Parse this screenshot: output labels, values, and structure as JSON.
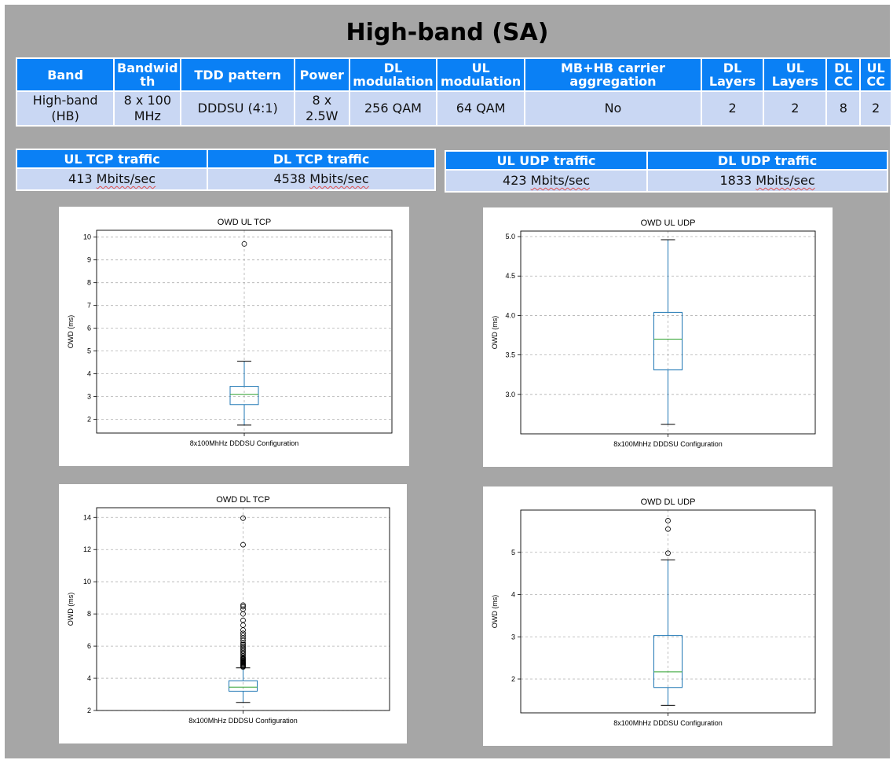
{
  "title": "High-band (SA)",
  "spec_table": {
    "headers": [
      "Band",
      "Bandwidth",
      "TDD pattern",
      "Power",
      "DL modulation",
      "UL modulation",
      "MB+HB carrier aggregation",
      "DL Layers",
      "UL Layers",
      "DL CC",
      "UL CC"
    ],
    "header_lines": [
      [
        "Band"
      ],
      [
        "Bandwid",
        "th"
      ],
      [
        "TDD pattern"
      ],
      [
        "Power"
      ],
      [
        "DL",
        "modulation"
      ],
      [
        "UL",
        "modulation"
      ],
      [
        "MB+HB carrier",
        "aggregation"
      ],
      [
        "DL",
        "Layers"
      ],
      [
        "UL",
        "Layers"
      ],
      [
        "DL",
        "CC"
      ],
      [
        "UL",
        "CC"
      ]
    ],
    "row_lines": [
      [
        "High-band",
        "(HB)"
      ],
      [
        "8 x 100",
        "MHz"
      ],
      [
        "DDDSU (4:1)"
      ],
      [
        "8 x",
        "2.5W"
      ],
      [
        "256 QAM"
      ],
      [
        "64 QAM"
      ],
      [
        "No"
      ],
      [
        "2"
      ],
      [
        "2"
      ],
      [
        "8"
      ],
      [
        "2"
      ]
    ]
  },
  "tcp_table": {
    "headers": [
      "UL TCP traffic",
      "DL TCP traffic"
    ],
    "values": [
      [
        "413",
        "Mbits/sec"
      ],
      [
        "4538",
        "Mbits/sec"
      ]
    ]
  },
  "udp_table": {
    "headers": [
      "UL UDP traffic",
      "DL UDP traffic"
    ],
    "values": [
      [
        "423",
        "Mbits/sec"
      ],
      [
        "1833",
        "Mbits/sec"
      ]
    ]
  },
  "chart_data": [
    {
      "type": "box",
      "title": "OWD UL TCP",
      "ylabel": "OWD (ms)",
      "categories": [
        "8x100MhHz DDDSU Configuration"
      ],
      "ylim": [
        1.4,
        10.3
      ],
      "yticks": [
        2,
        3,
        4,
        5,
        6,
        7,
        8,
        9,
        10
      ],
      "grid": true,
      "box": {
        "min": 1.75,
        "q1": 2.65,
        "median": 3.1,
        "q3": 3.45,
        "max": 4.55,
        "outliers": [
          9.7
        ]
      }
    },
    {
      "type": "box",
      "title": "OWD UL UDP",
      "ylabel": "OWD (ms)",
      "categories": [
        "8x100MhHz DDDSU Configuration"
      ],
      "ylim": [
        2.5,
        5.07
      ],
      "yticks": [
        3.0,
        3.5,
        4.0,
        4.5,
        5.0
      ],
      "tick_format": 1,
      "grid": true,
      "box": {
        "min": 2.62,
        "q1": 3.31,
        "median": 3.7,
        "q3": 4.04,
        "max": 4.96,
        "outliers": []
      }
    },
    {
      "type": "box",
      "title": "OWD DL TCP",
      "ylabel": "OWD (ms)",
      "categories": [
        "8x100MhHz DDDSU Configuration"
      ],
      "ylim": [
        2,
        14.6
      ],
      "yticks": [
        2,
        4,
        6,
        8,
        10,
        12,
        14
      ],
      "grid": true,
      "box": {
        "min": 2.5,
        "q1": 3.2,
        "median": 3.45,
        "q3": 3.85,
        "max": 4.65,
        "outliers": [
          4.7,
          4.75,
          4.8,
          4.85,
          4.9,
          4.95,
          5.0,
          5.05,
          5.1,
          5.15,
          5.2,
          5.25,
          5.3,
          5.4,
          5.5,
          5.6,
          5.7,
          5.8,
          5.9,
          6.0,
          6.1,
          6.2,
          6.35,
          6.5,
          6.65,
          6.8,
          7.0,
          7.3,
          7.6,
          8.0,
          8.3,
          8.45,
          8.55,
          12.3,
          13.95
        ]
      }
    },
    {
      "type": "box",
      "title": "OWD DL UDP",
      "ylabel": "OWD (ms)",
      "categories": [
        "8x100MhHz DDDSU Configuration"
      ],
      "ylim": [
        1.2,
        6.0
      ],
      "yticks": [
        2,
        3,
        4,
        5
      ],
      "grid": true,
      "box": {
        "min": 1.38,
        "q1": 1.8,
        "median": 2.17,
        "q3": 3.03,
        "max": 4.82,
        "outliers": [
          4.98,
          5.55,
          5.75
        ]
      }
    }
  ],
  "colors": {
    "header_bg": "#0a80f5",
    "cell_bg": "#c9d7f3",
    "slide_bg": "#a6a6a6",
    "box": "#1f77b4",
    "median": "#2ca02c"
  }
}
